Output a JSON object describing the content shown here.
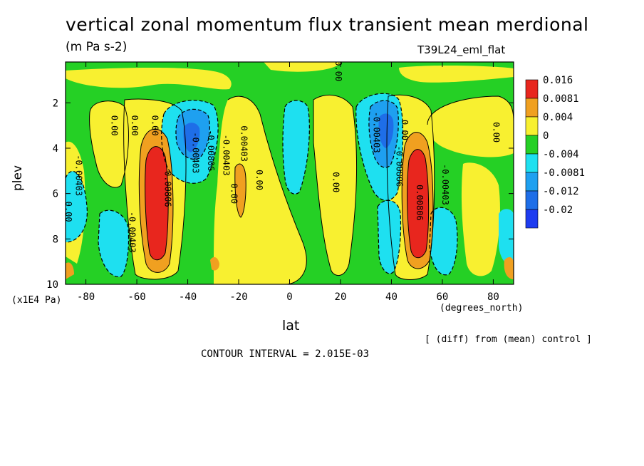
{
  "header": {
    "title": "vertical zonal momentum flux transient mean merdional",
    "units": "(m Pa s-2)",
    "run_id": "T39L24_eml_flat"
  },
  "footer": {
    "diff_note": "[ (diff) from (mean) control ]",
    "contour_interval": "CONTOUR INTERVAL = 2.015E-03"
  },
  "chart_data": {
    "type": "heatmap",
    "title": "vertical zonal momentum flux transient mean merdional",
    "xlabel": "lat",
    "xunit": "(degrees_north)",
    "ylabel": "plev",
    "yunit": "(x1E4 Pa)",
    "xlim": [
      -88,
      88
    ],
    "ylim": [
      10,
      0.2
    ],
    "xticks": [
      -80,
      -60,
      -40,
      -20,
      0,
      20,
      40,
      60,
      80
    ],
    "xtick_labels": [
      "-80",
      "-60",
      "-40",
      "-20",
      "0",
      "20",
      "40",
      "60",
      "80"
    ],
    "yticks": [
      2,
      4,
      6,
      8,
      10
    ],
    "ytick_labels": [
      "2",
      "4",
      "6",
      "8",
      "10"
    ],
    "legend": {
      "position": "right",
      "levels": [
        "0.016",
        "0.0081",
        "0.004",
        "0",
        "-0.004",
        "-0.0081",
        "-0.012",
        "-0.02"
      ],
      "colors": [
        "#e8261e",
        "#f0a020",
        "#f8f030",
        "#25d025",
        "#1ee0f0",
        "#1ea0f0",
        "#1e6ee8",
        "#1e3cf0"
      ]
    },
    "contour_labels": [
      {
        "lat": -84,
        "plev": 5.2,
        "text": "-0.00403"
      },
      {
        "lat": -88,
        "plev": 6.8,
        "text": "0.00"
      },
      {
        "lat": -63,
        "plev": 7.7,
        "text": "-0.00403"
      },
      {
        "lat": -62,
        "plev": 3.0,
        "text": "0.00"
      },
      {
        "lat": -54,
        "plev": 3.0,
        "text": "0.00"
      },
      {
        "lat": -49,
        "plev": 5.8,
        "text": "0.00806"
      },
      {
        "lat": -38,
        "plev": 4.2,
        "text": "-0.00403"
      },
      {
        "lat": -32,
        "plev": 4.1,
        "text": "-0.00806"
      },
      {
        "lat": -26,
        "plev": 4.3,
        "text": "-0.00403"
      },
      {
        "lat": -19,
        "plev": 3.8,
        "text": "0.00403"
      },
      {
        "lat": -23,
        "plev": 6.0,
        "text": "0.00"
      },
      {
        "lat": -13,
        "plev": 5.4,
        "text": "0.00"
      },
      {
        "lat": 17,
        "plev": 5.5,
        "text": "0.00"
      },
      {
        "lat": 18,
        "plev": 0.6,
        "text": "0.00"
      },
      {
        "lat": 33,
        "plev": 3.3,
        "text": "-0.00403"
      },
      {
        "lat": 42,
        "plev": 4.8,
        "text": "-0.00806"
      },
      {
        "lat": 44,
        "plev": 3.2,
        "text": "0.00"
      },
      {
        "lat": 50,
        "plev": 6.4,
        "text": "0.00806"
      },
      {
        "lat": 60,
        "plev": 5.6,
        "text": "-0.00403"
      },
      {
        "lat": 80,
        "plev": 3.3,
        "text": "0.00"
      },
      {
        "lat": -70,
        "plev": 3.0,
        "text": "0.00"
      }
    ],
    "features": [
      {
        "lat": -52,
        "plev": 6.3,
        "value": 0.016,
        "shape": "positive maximum"
      },
      {
        "lat": 50,
        "plev": 6.3,
        "value": 0.016,
        "shape": "positive maximum"
      },
      {
        "lat": -40,
        "plev": 3.8,
        "value": -0.012,
        "shape": "negative minimum"
      },
      {
        "lat": 40,
        "plev": 3.5,
        "value": -0.012,
        "shape": "negative minimum"
      },
      {
        "lat": -20,
        "plev": 6.0,
        "value": 0.0081,
        "shape": "positive band"
      },
      {
        "lat": 0,
        "plev": 3.8,
        "value": -0.0081,
        "shape": "negative minimum"
      },
      {
        "lat": -75,
        "plev": 7.5,
        "value": -0.0081,
        "shape": "negative minimum"
      }
    ]
  }
}
